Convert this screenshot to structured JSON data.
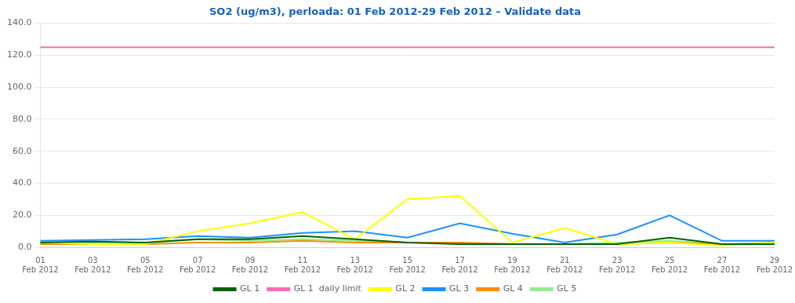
{
  "chart_data": {
    "type": "line",
    "title": "SO2 (ug/m3), perloada: 01 Feb 2012-29 Feb 2012 – Validate data",
    "title_color": "#1560bd",
    "categories": [
      "01\nFeb 2012",
      "03\nFeb 2012",
      "05\nFeb 2012",
      "07\nFeb 2012",
      "09\nFeb 2012",
      "11\nFeb 2012",
      "13\nFeb 2012",
      "15\nFeb 2012",
      "17\nFeb 2012",
      "19\nFeb 2012",
      "21\nFeb 2012",
      "23\nFeb 2012",
      "25\nFeb 2012",
      "27\nFeb 2012",
      "29\nFeb 2012"
    ],
    "series": [
      {
        "name": "GL 1",
        "color": "#006400",
        "values": [
          3.0,
          3.5,
          3.0,
          5.0,
          5.0,
          7.0,
          5.0,
          3.0,
          2.0,
          2.0,
          2.0,
          2.0,
          6.0,
          2.0,
          2.0
        ]
      },
      {
        "name": "GL 1  daily limit",
        "color": "#ff69b4",
        "values": [
          125.0,
          125.0,
          125.0,
          125.0,
          125.0,
          125.0,
          125.0,
          125.0,
          125.0,
          125.0,
          125.0,
          125.0,
          125.0,
          125.0,
          125.0
        ]
      },
      {
        "name": "GL 2",
        "color": "#ffff00",
        "values": [
          3.0,
          2.0,
          2.0,
          10.0,
          15.0,
          22.0,
          5.0,
          30.0,
          32.0,
          3.0,
          12.0,
          2.0,
          3.0,
          1.0,
          3.0
        ]
      },
      {
        "name": "GL 3",
        "color": "#1e90ff",
        "values": [
          4.0,
          4.5,
          5.0,
          7.0,
          6.0,
          9.0,
          10.0,
          6.0,
          15.0,
          8.5,
          3.0,
          8.0,
          20.0,
          4.0,
          4.0
        ]
      },
      {
        "name": "GL 4",
        "color": "#ff8c00",
        "values": [
          2.0,
          2.0,
          2.0,
          3.0,
          3.0,
          4.0,
          3.0,
          3.0,
          3.0,
          2.0,
          2.0,
          2.0,
          3.0,
          2.0,
          2.0
        ]
      },
      {
        "name": "GL 5",
        "color": "#90ee90",
        "values": [
          3.0,
          3.0,
          3.0,
          5.0,
          4.0,
          5.0,
          4.0,
          3.0,
          3.0,
          2.0,
          2.0,
          3.0,
          4.0,
          2.0,
          3.0
        ]
      }
    ],
    "ylim": [
      0,
      140
    ],
    "yticks": [
      {
        "value": 0,
        "label": "0.0"
      },
      {
        "value": 20,
        "label": "20.0"
      },
      {
        "value": 40,
        "label": "40.0"
      },
      {
        "value": 60,
        "label": "60.0"
      },
      {
        "value": 80,
        "label": "80.0"
      },
      {
        "value": 100,
        "label": "100.0"
      },
      {
        "value": 120,
        "label": "120.0"
      },
      {
        "value": 140,
        "label": "140.0"
      }
    ],
    "grid": true,
    "legend": "bottom"
  }
}
